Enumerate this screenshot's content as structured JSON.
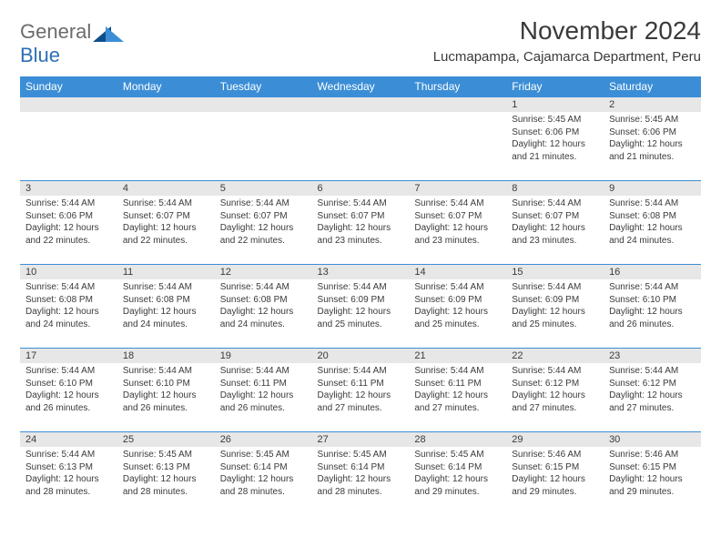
{
  "logo": {
    "part1": "General",
    "part2": "Blue"
  },
  "title": "November 2024",
  "location": "Lucmapampa, Cajamarca Department, Peru",
  "colors": {
    "header_bg": "#3b8ed6",
    "header_text": "#ffffff",
    "row_divider": "#3b8ed6",
    "day_bg": "#e7e7e7",
    "text": "#3a3a3a",
    "logo_gray": "#6b6b6b",
    "logo_blue": "#2d6fb5"
  },
  "weekdays": [
    "Sunday",
    "Monday",
    "Tuesday",
    "Wednesday",
    "Thursday",
    "Friday",
    "Saturday"
  ],
  "weeks": [
    [
      null,
      null,
      null,
      null,
      null,
      {
        "n": "1",
        "sr": "5:45 AM",
        "ss": "6:06 PM",
        "dl": "12 hours and 21 minutes."
      },
      {
        "n": "2",
        "sr": "5:45 AM",
        "ss": "6:06 PM",
        "dl": "12 hours and 21 minutes."
      }
    ],
    [
      {
        "n": "3",
        "sr": "5:44 AM",
        "ss": "6:06 PM",
        "dl": "12 hours and 22 minutes."
      },
      {
        "n": "4",
        "sr": "5:44 AM",
        "ss": "6:07 PM",
        "dl": "12 hours and 22 minutes."
      },
      {
        "n": "5",
        "sr": "5:44 AM",
        "ss": "6:07 PM",
        "dl": "12 hours and 22 minutes."
      },
      {
        "n": "6",
        "sr": "5:44 AM",
        "ss": "6:07 PM",
        "dl": "12 hours and 23 minutes."
      },
      {
        "n": "7",
        "sr": "5:44 AM",
        "ss": "6:07 PM",
        "dl": "12 hours and 23 minutes."
      },
      {
        "n": "8",
        "sr": "5:44 AM",
        "ss": "6:07 PM",
        "dl": "12 hours and 23 minutes."
      },
      {
        "n": "9",
        "sr": "5:44 AM",
        "ss": "6:08 PM",
        "dl": "12 hours and 24 minutes."
      }
    ],
    [
      {
        "n": "10",
        "sr": "5:44 AM",
        "ss": "6:08 PM",
        "dl": "12 hours and 24 minutes."
      },
      {
        "n": "11",
        "sr": "5:44 AM",
        "ss": "6:08 PM",
        "dl": "12 hours and 24 minutes."
      },
      {
        "n": "12",
        "sr": "5:44 AM",
        "ss": "6:08 PM",
        "dl": "12 hours and 24 minutes."
      },
      {
        "n": "13",
        "sr": "5:44 AM",
        "ss": "6:09 PM",
        "dl": "12 hours and 25 minutes."
      },
      {
        "n": "14",
        "sr": "5:44 AM",
        "ss": "6:09 PM",
        "dl": "12 hours and 25 minutes."
      },
      {
        "n": "15",
        "sr": "5:44 AM",
        "ss": "6:09 PM",
        "dl": "12 hours and 25 minutes."
      },
      {
        "n": "16",
        "sr": "5:44 AM",
        "ss": "6:10 PM",
        "dl": "12 hours and 26 minutes."
      }
    ],
    [
      {
        "n": "17",
        "sr": "5:44 AM",
        "ss": "6:10 PM",
        "dl": "12 hours and 26 minutes."
      },
      {
        "n": "18",
        "sr": "5:44 AM",
        "ss": "6:10 PM",
        "dl": "12 hours and 26 minutes."
      },
      {
        "n": "19",
        "sr": "5:44 AM",
        "ss": "6:11 PM",
        "dl": "12 hours and 26 minutes."
      },
      {
        "n": "20",
        "sr": "5:44 AM",
        "ss": "6:11 PM",
        "dl": "12 hours and 27 minutes."
      },
      {
        "n": "21",
        "sr": "5:44 AM",
        "ss": "6:11 PM",
        "dl": "12 hours and 27 minutes."
      },
      {
        "n": "22",
        "sr": "5:44 AM",
        "ss": "6:12 PM",
        "dl": "12 hours and 27 minutes."
      },
      {
        "n": "23",
        "sr": "5:44 AM",
        "ss": "6:12 PM",
        "dl": "12 hours and 27 minutes."
      }
    ],
    [
      {
        "n": "24",
        "sr": "5:44 AM",
        "ss": "6:13 PM",
        "dl": "12 hours and 28 minutes."
      },
      {
        "n": "25",
        "sr": "5:45 AM",
        "ss": "6:13 PM",
        "dl": "12 hours and 28 minutes."
      },
      {
        "n": "26",
        "sr": "5:45 AM",
        "ss": "6:14 PM",
        "dl": "12 hours and 28 minutes."
      },
      {
        "n": "27",
        "sr": "5:45 AM",
        "ss": "6:14 PM",
        "dl": "12 hours and 28 minutes."
      },
      {
        "n": "28",
        "sr": "5:45 AM",
        "ss": "6:14 PM",
        "dl": "12 hours and 29 minutes."
      },
      {
        "n": "29",
        "sr": "5:46 AM",
        "ss": "6:15 PM",
        "dl": "12 hours and 29 minutes."
      },
      {
        "n": "30",
        "sr": "5:46 AM",
        "ss": "6:15 PM",
        "dl": "12 hours and 29 minutes."
      }
    ]
  ],
  "labels": {
    "sunrise": "Sunrise:",
    "sunset": "Sunset:",
    "daylight": "Daylight:"
  }
}
